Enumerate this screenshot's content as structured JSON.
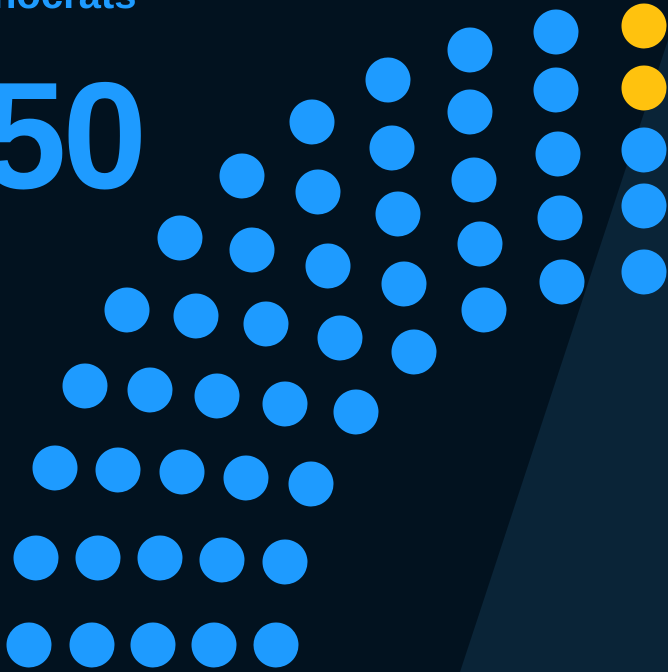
{
  "party": {
    "name": "nocrats",
    "seats": 50
  }
}
